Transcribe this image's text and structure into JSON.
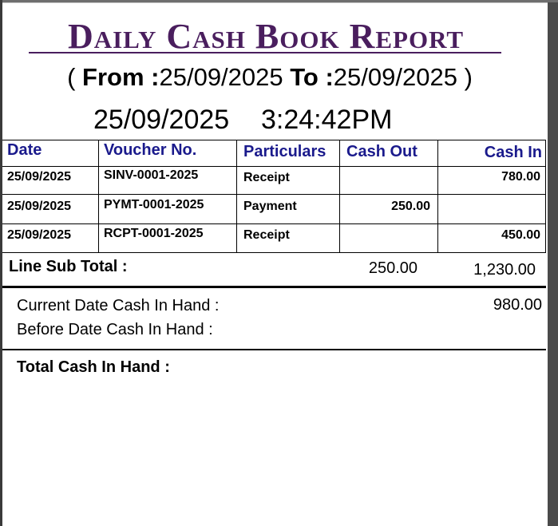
{
  "report": {
    "title": "Daily Cash Book Report",
    "range": {
      "open": "(",
      "from_label": "From :",
      "from_date": "25/09/2025",
      "to_label": "To :",
      "to_date": "25/09/2025",
      "close": ")"
    },
    "print_date": "25/09/2025",
    "print_time": "3:24:42PM"
  },
  "table": {
    "headers": {
      "date": "Date",
      "voucher": "Voucher No.",
      "particulars": "Particulars",
      "cash_out": "Cash Out",
      "cash_in": "Cash In"
    },
    "rows": [
      {
        "date": "25/09/2025",
        "voucher": "SINV-0001-2025",
        "particulars": "Receipt",
        "cash_out": "",
        "cash_in": "780.00"
      },
      {
        "date": "25/09/2025",
        "voucher": "PYMT-0001-2025",
        "particulars": "Payment",
        "cash_out": "250.00",
        "cash_in": ""
      },
      {
        "date": "25/09/2025",
        "voucher": "RCPT-0001-2025",
        "particulars": "Receipt",
        "cash_out": "",
        "cash_in": "450.00"
      }
    ]
  },
  "subtotal": {
    "label": "Line Sub Total  :",
    "cash_out": "250.00",
    "cash_in": "1,230.00"
  },
  "summary": {
    "current_label": "Current Date  Cash In Hand :",
    "current_value": "980.00",
    "before_label": "Before Date  Cash In Hand :",
    "total_label": "Total  Cash In Hand :"
  }
}
